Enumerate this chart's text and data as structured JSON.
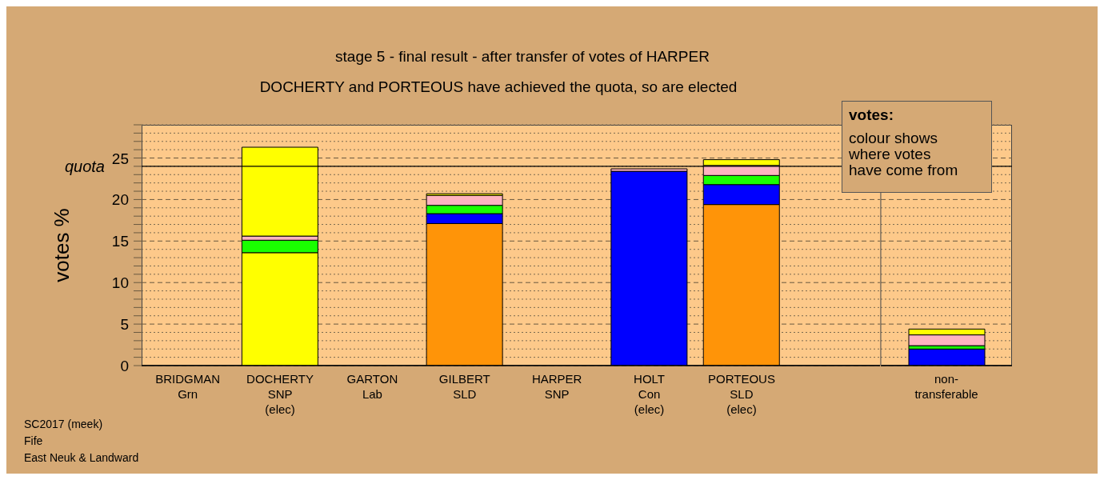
{
  "chart_data": [
    {
      "type": "bar",
      "stacked": true,
      "title": "stage 5 - final result - after transfer of votes of HARPER",
      "subtitle": "DOCHERTY and PORTEOUS have achieved the quota, so are elected",
      "ylabel": "votes %",
      "categories": [
        "BRIDGMAN\nGrn",
        "DOCHERTY\nSNP\n(elec)",
        "GARTON\nLab",
        "GILBERT\nSLD",
        "HARPER\nSNP",
        "HOLT\nCon\n(elec)",
        "PORTEOUS\nSLD\n(elec)",
        null
      ],
      "series": [
        {
          "colors": [
            null,
            "#ffff00",
            null,
            "#ff9408",
            null,
            "#0000ff",
            "#ff9408",
            null
          ],
          "values": [
            null,
            13.6,
            null,
            17.1,
            null,
            23.4,
            19.4,
            null
          ]
        },
        {
          "color": "#0000ff",
          "values": [
            null,
            null,
            null,
            1.2,
            null,
            null,
            2.4,
            null
          ]
        },
        {
          "color": "#1aff00",
          "values": [
            null,
            1.5,
            null,
            1.0,
            null,
            null,
            1.1,
            null
          ]
        },
        {
          "color": "#ffb3c0",
          "values": [
            null,
            0.5,
            null,
            1.2,
            null,
            0.3,
            1.2,
            null
          ]
        },
        {
          "color": "#ffff00",
          "values": [
            null,
            10.7,
            null,
            0.2,
            null,
            null,
            0.7,
            null
          ]
        }
      ],
      "ylim": [
        0,
        29
      ],
      "yticks": [
        0,
        {
          "value": 1,
          "label": null
        },
        {
          "value": 2,
          "label": null
        },
        {
          "value": 3,
          "label": null
        },
        {
          "value": 4,
          "label": null
        },
        5,
        {
          "value": 6,
          "label": null
        },
        {
          "value": 7,
          "label": null
        },
        {
          "value": 8,
          "label": null
        },
        {
          "value": 9,
          "label": null
        },
        10,
        {
          "value": 11,
          "label": null
        },
        {
          "value": 12,
          "label": null
        },
        {
          "value": 13,
          "label": null
        },
        {
          "value": 14,
          "label": null
        },
        15,
        {
          "value": 16,
          "label": null
        },
        {
          "value": 17,
          "label": null
        },
        {
          "value": 18,
          "label": null
        },
        {
          "value": 19,
          "label": null
        },
        20,
        {
          "value": 21,
          "label": null
        },
        {
          "value": 22,
          "label": null
        },
        {
          "value": 23,
          "label": null
        },
        {
          "value": 24,
          "label": null
        },
        25,
        {
          "value": 26,
          "label": null
        },
        {
          "value": 27,
          "label": null
        },
        {
          "value": 28,
          "label": null
        },
        {
          "value": 29,
          "label": null
        }
      ],
      "grid": "y",
      "ref_lines": [
        {
          "axis": "y",
          "value": 24,
          "label": "quota",
          "color": "#000000"
        }
      ],
      "annotations": [
        "votes:",
        "colour shows\nwhere votes\nhave come from",
        "SC2017 (meek)",
        "Fife",
        "East Neuk & Landward"
      ]
    },
    {
      "type": "bar",
      "stacked": true,
      "categories": [
        "non-\ntransferable"
      ],
      "series": [
        {
          "color": "#0000ff",
          "values": [
            2.0
          ]
        },
        {
          "color": "#1aff00",
          "values": [
            0.4
          ]
        },
        {
          "color": "#ffb3c0",
          "values": [
            1.3
          ]
        },
        {
          "color": "#ffff00",
          "values": [
            0.7
          ]
        }
      ],
      "ylim": [
        0,
        29
      ],
      "yticks": [
        0,
        {
          "value": 1,
          "label": null
        },
        {
          "value": 2,
          "label": null
        },
        {
          "value": 3,
          "label": null
        },
        {
          "value": 4,
          "label": null
        },
        5,
        {
          "value": 6,
          "label": null
        },
        {
          "value": 7,
          "label": null
        },
        {
          "value": 8,
          "label": null
        },
        {
          "value": 9,
          "label": null
        },
        10,
        {
          "value": 11,
          "label": null
        },
        {
          "value": 12,
          "label": null
        },
        {
          "value": 13,
          "label": null
        },
        {
          "value": 14,
          "label": null
        },
        15,
        {
          "value": 16,
          "label": null
        },
        {
          "value": 17,
          "label": null
        },
        {
          "value": 18,
          "label": null
        },
        {
          "value": 19,
          "label": null
        },
        20,
        {
          "value": 21,
          "label": null
        },
        {
          "value": 22,
          "label": null
        },
        {
          "value": 23,
          "label": null
        },
        {
          "value": 24,
          "label": null
        },
        25,
        {
          "value": 26,
          "label": null
        },
        {
          "value": 27,
          "label": null
        },
        {
          "value": 28,
          "label": null
        },
        {
          "value": 29,
          "label": null
        }
      ],
      "grid": "y",
      "tick_labels": "x",
      "ref_lines": [
        {
          "axis": "y",
          "value": 24,
          "color": "#000000"
        }
      ]
    }
  ]
}
